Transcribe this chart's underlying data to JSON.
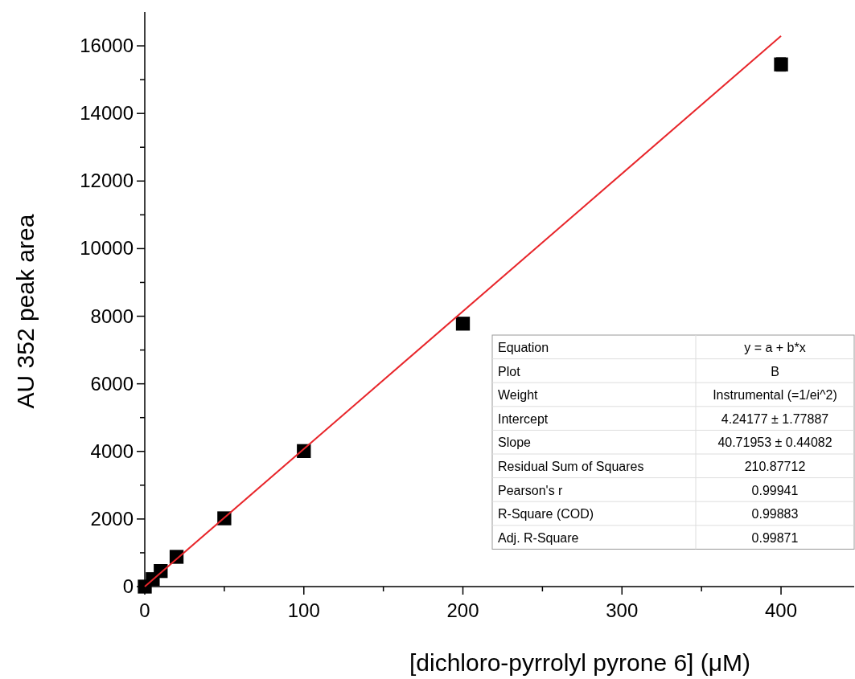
{
  "chart_data": {
    "type": "scatter",
    "xlabel": "[dichloro-pyrrolyl pyrone 6] (μM)",
    "ylabel": "AU 352 peak area",
    "xlim": [
      0,
      446
    ],
    "ylim": [
      0,
      17000
    ],
    "xticks": [
      0,
      {
        "value": 50,
        "label": null
      },
      100,
      {
        "value": 150,
        "label": null
      },
      200,
      {
        "value": 250,
        "label": null
      },
      300,
      {
        "value": 350,
        "label": null
      },
      400
    ],
    "yticks": [
      0,
      {
        "value": 1000,
        "label": null
      },
      2000,
      {
        "value": 3000,
        "label": null
      },
      4000,
      {
        "value": 5000,
        "label": null
      },
      6000,
      {
        "value": 7000,
        "label": null
      },
      8000,
      {
        "value": 9000,
        "label": null
      },
      10000,
      {
        "value": 11000,
        "label": null
      },
      12000,
      {
        "value": 13000,
        "label": null
      },
      14000,
      {
        "value": 15000,
        "label": null
      },
      16000
    ],
    "grid": false,
    "marker": "square",
    "series": [
      {
        "color": "#000000",
        "x": [
          0,
          5,
          10,
          20,
          50,
          100,
          200,
          400
        ],
        "values": [
          0,
          220,
          460,
          880,
          2020,
          4010,
          7780,
          15450
        ],
        "errors": [
          null,
          null,
          null,
          null,
          null,
          null,
          null,
          200
        ]
      },
      {
        "type": "line",
        "color": "#e8262b",
        "line_style": "solid",
        "marker": "none",
        "x": [
          0,
          400
        ],
        "values": [
          0,
          16290
        ]
      }
    ],
    "annotations": [
      "Equation",
      "y = a + b*x",
      "Plot",
      "B",
      "Weight",
      "Instrumental (=1/ei^2)",
      "Intercept",
      "4.24177 ± 1.77887",
      "Slope",
      "40.71953 ± 0.44082",
      "Residual Sum of Squares",
      "210.87712",
      "Pearson's r",
      "0.99941",
      "R-Square (COD)",
      "0.99883",
      "Adj. R-Square",
      "0.99871"
    ]
  }
}
